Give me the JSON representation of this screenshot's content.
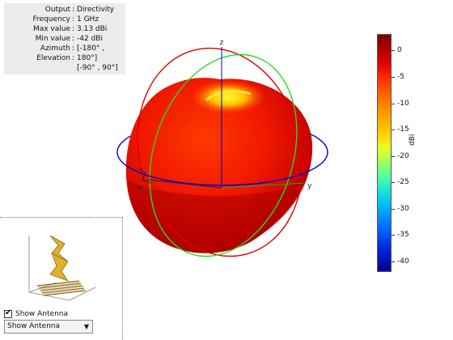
{
  "info": {
    "rows": [
      {
        "label": "Output",
        "value": "Directivity"
      },
      {
        "label": "Frequency",
        "value": "1 GHz"
      },
      {
        "label": "Max value",
        "value": "3.13 dBi"
      },
      {
        "label": "Min value",
        "value": "-42 dBi"
      },
      {
        "label": "Azimuth",
        "value": "[-180° ,"
      },
      {
        "label": "Elevation",
        "value": "180°]"
      }
    ],
    "continuation": "[-90° , 90°]"
  },
  "axes": {
    "x": "x",
    "y": "y",
    "z": "z"
  },
  "colorbar": {
    "title": "dBi",
    "ticks": [
      "0",
      "-5",
      "-10",
      "-15",
      "-20",
      "-25",
      "-30",
      "-35",
      "-40"
    ],
    "max": 3.13,
    "min": -42
  },
  "antenna_panel": {
    "checkbox_label": "Show Antenna",
    "checked": true,
    "select_value": "Show Antenna"
  },
  "colors": {
    "pattern_red": "#e00000",
    "azimuth_ring": "#0000cc",
    "elevation_ring_green": "#22dd22",
    "elevation_ring_red": "#dd0000",
    "antenna_gold": "#e0b030"
  }
}
